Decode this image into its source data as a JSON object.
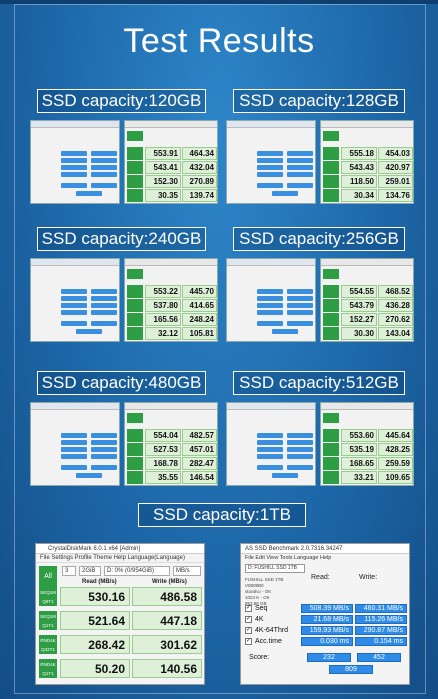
{
  "title": "Test Results",
  "sections": [
    {
      "capacity": "SSD capacity:120GB",
      "cdm": [
        {
          "read": "553.91",
          "write": "464.34"
        },
        {
          "read": "543.41",
          "write": "432.04"
        },
        {
          "read": "152.30",
          "write": "270.89"
        },
        {
          "read": "30.35",
          "write": "139.74"
        }
      ]
    },
    {
      "capacity": "SSD capacity:128GB",
      "cdm": [
        {
          "read": "555.18",
          "write": "454.03"
        },
        {
          "read": "543.43",
          "write": "420.97"
        },
        {
          "read": "118.50",
          "write": "259.01"
        },
        {
          "read": "30.34",
          "write": "134.76"
        }
      ]
    },
    {
      "capacity": "SSD capacity:240GB",
      "cdm": [
        {
          "read": "553.22",
          "write": "445.70"
        },
        {
          "read": "537.80",
          "write": "414.65"
        },
        {
          "read": "165.56",
          "write": "248.24"
        },
        {
          "read": "32.12",
          "write": "105.81"
        }
      ]
    },
    {
      "capacity": "SSD capacity:256GB",
      "cdm": [
        {
          "read": "554.55",
          "write": "468.52"
        },
        {
          "read": "543.79",
          "write": "436.28"
        },
        {
          "read": "152.27",
          "write": "270.62"
        },
        {
          "read": "30.30",
          "write": "143.04"
        }
      ]
    },
    {
      "capacity": "SSD capacity:480GB",
      "cdm": [
        {
          "read": "554.04",
          "write": "482.57"
        },
        {
          "read": "527.53",
          "write": "457.01"
        },
        {
          "read": "168.78",
          "write": "282.47"
        },
        {
          "read": "35.55",
          "write": "146.54"
        }
      ]
    },
    {
      "capacity": "SSD capacity:512GB",
      "cdm": [
        {
          "read": "553.60",
          "write": "445.64"
        },
        {
          "read": "535.19",
          "write": "428.25"
        },
        {
          "read": "168.65",
          "write": "259.59"
        },
        {
          "read": "33.21",
          "write": "109.65"
        }
      ]
    }
  ],
  "tb_capacity": "SSD capacity:1TB",
  "big_cdm": {
    "window_title": "CrystalDiskMark 8.0.1 x64 [Admin]",
    "menu": "File  Settings  Profile  Theme  Help  Language(Language)",
    "all_label": "All",
    "count": "3",
    "size": "2GiB",
    "drive": "D: 0% (0/954GiB)",
    "unit": "MB/s",
    "read_header": "Read (MB/s)",
    "write_header": "Write (MB/s)",
    "rows": [
      {
        "tag1": "SEQ1M",
        "tag2": "Q8T1",
        "read": "530.16",
        "write": "486.58"
      },
      {
        "tag1": "SEQ1M",
        "tag2": "Q1T1",
        "read": "521.64",
        "write": "447.18"
      },
      {
        "tag1": "RND4K",
        "tag2": "Q32T1",
        "read": "268.42",
        "write": "301.62"
      },
      {
        "tag1": "RND4K",
        "tag2": "Q1T1",
        "read": "50.20",
        "write": "140.56"
      }
    ]
  },
  "big_as": {
    "window_title": "AS SSD Benchmark 2.0.7316.34247",
    "menu": "File  Edit  View  Tools  Language  Help",
    "drive": "D: FUSHILL SSD 1TB",
    "info": [
      "FUSHILL SSD 1TB",
      "V0609B0",
      "storahci - OK",
      "1024 K - OK",
      "953.86 GB"
    ],
    "read_header": "Read:",
    "write_header": "Write:",
    "rows": [
      {
        "name": "Seq",
        "read": "508.39 MB/s",
        "write": "460.31 MB/s"
      },
      {
        "name": "4K",
        "read": "21.68 MB/s",
        "write": "115.26 MB/s"
      },
      {
        "name": "4K-64Thrd",
        "read": "159.93 MB/s",
        "write": "290.87 MB/s"
      },
      {
        "name": "Acc.time",
        "read": "0.030 ms",
        "write": "0.154 ms"
      }
    ],
    "score_label": "Score:",
    "score_read": "232",
    "score_write": "452",
    "score_total": "809"
  },
  "colors": {
    "background": "#1f6fb0",
    "cdm_green": "#2e9e44",
    "as_blue": "#2f8be8"
  }
}
